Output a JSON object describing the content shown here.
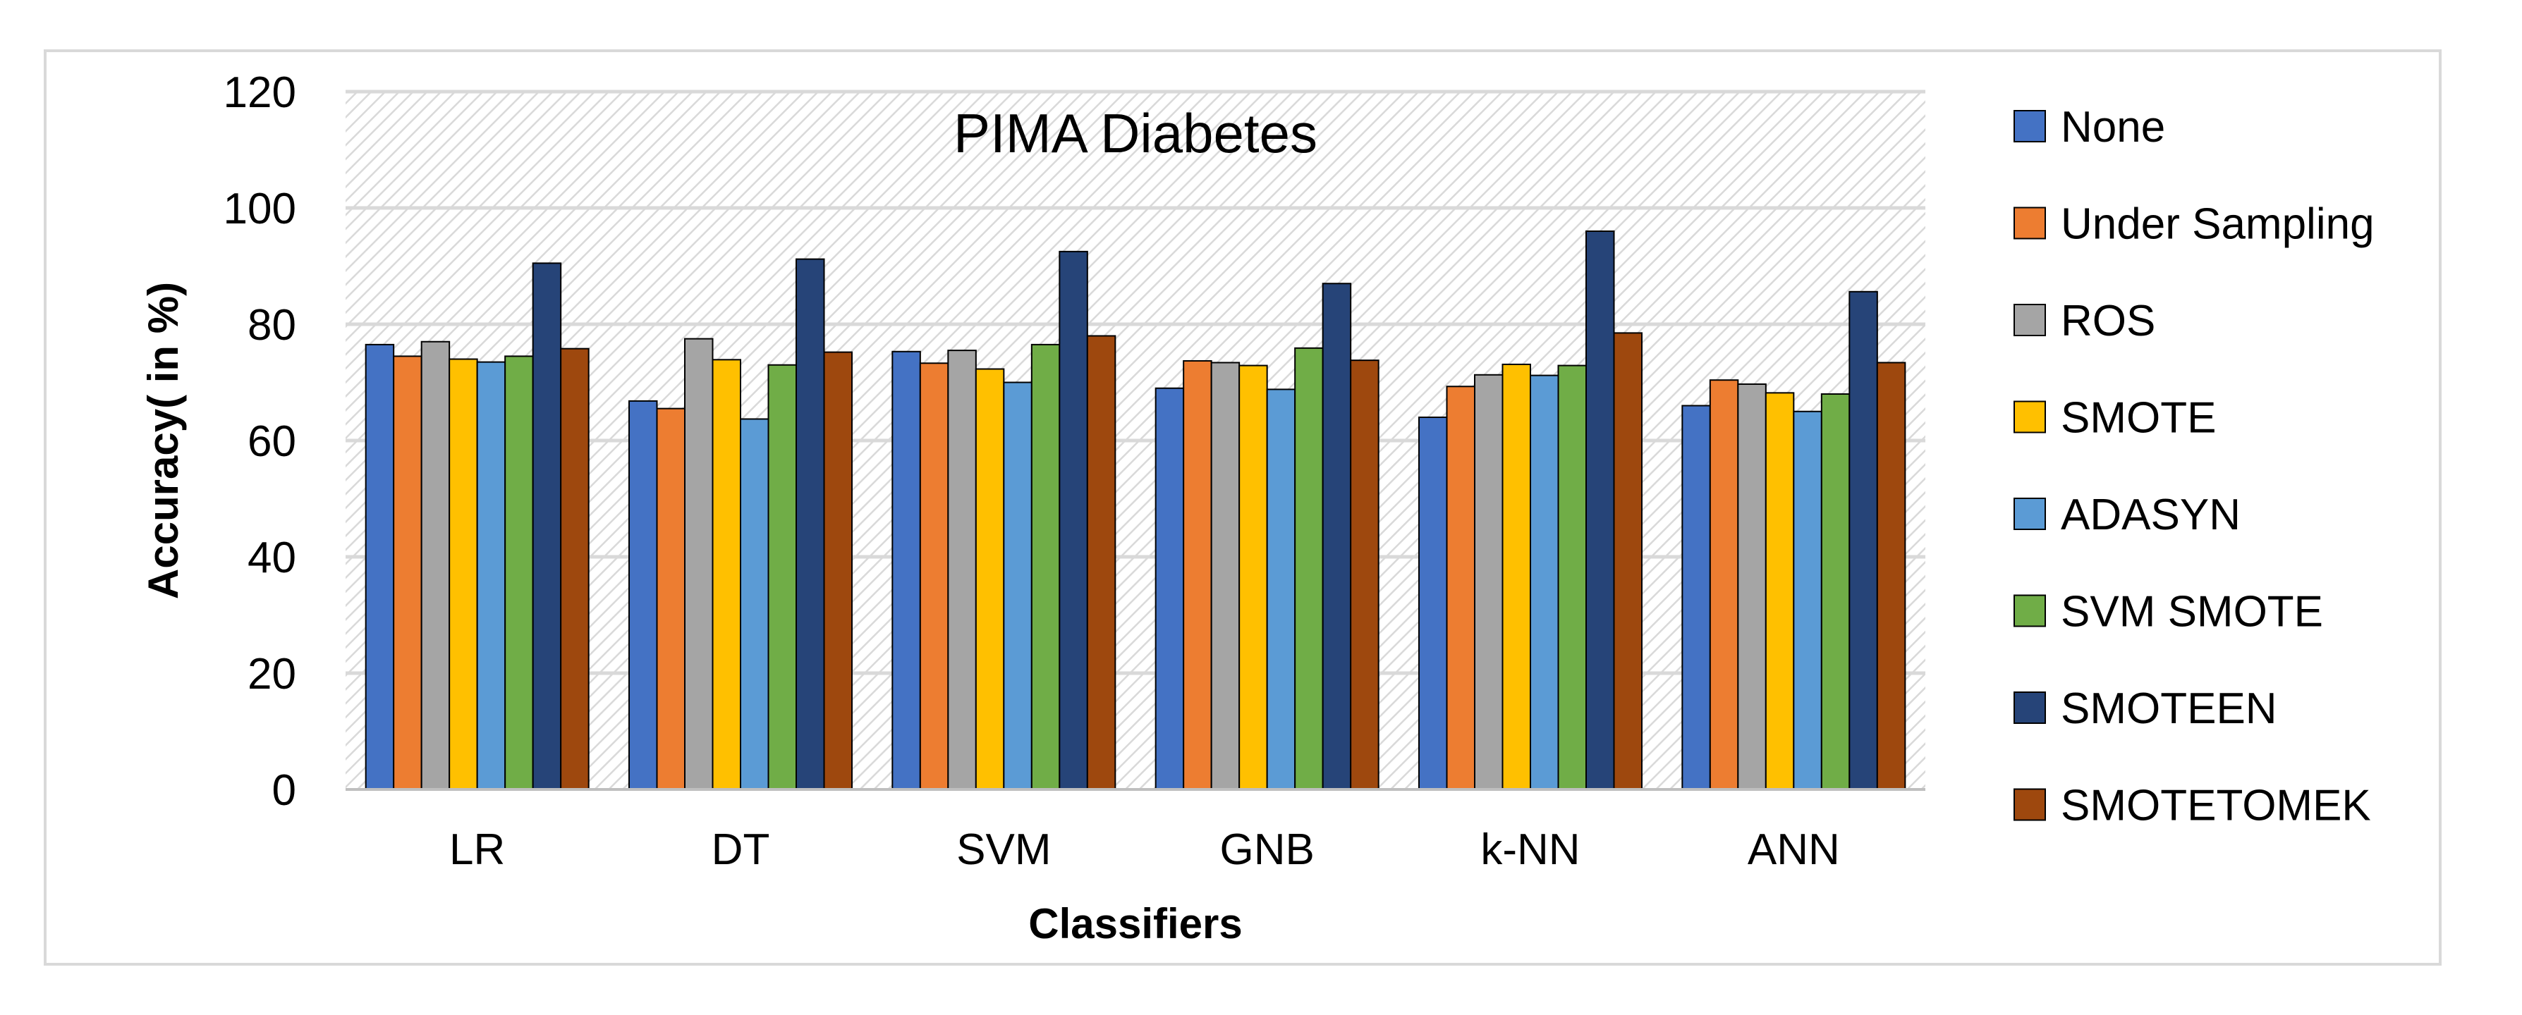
{
  "chart_data": {
    "type": "bar",
    "title": "PIMA Diabetes",
    "xlabel": "Classifiers",
    "ylabel": "Accuracy( in %)",
    "ylim": [
      0,
      120
    ],
    "yticks": [
      0,
      20,
      40,
      60,
      80,
      100,
      120
    ],
    "grid": true,
    "legend_position": "right",
    "categories": [
      "LR",
      "DT",
      "SVM",
      "GNB",
      "k-NN",
      "ANN"
    ],
    "series": [
      {
        "name": "None",
        "color": "#4472c4",
        "values": [
          76.5,
          66.8,
          75.3,
          69.0,
          64.0,
          66.0
        ]
      },
      {
        "name": "Under Sampling",
        "color": "#ed7d31",
        "values": [
          74.5,
          65.5,
          73.3,
          73.7,
          69.3,
          70.4
        ]
      },
      {
        "name": "ROS",
        "color": "#a5a5a5",
        "values": [
          77.0,
          77.5,
          75.5,
          73.4,
          71.3,
          69.7
        ]
      },
      {
        "name": "SMOTE",
        "color": "#ffc000",
        "values": [
          74.0,
          73.9,
          72.3,
          72.9,
          73.1,
          68.2
        ]
      },
      {
        "name": "ADASYN",
        "color": "#5b9bd5",
        "values": [
          73.5,
          63.7,
          70.0,
          68.8,
          71.2,
          65.0
        ]
      },
      {
        "name": "SVM SMOTE",
        "color": "#70ad47",
        "values": [
          74.5,
          73.0,
          76.5,
          75.9,
          72.9,
          68.0
        ]
      },
      {
        "name": "SMOTEEN",
        "color": "#264478",
        "values": [
          90.5,
          91.2,
          92.5,
          87.0,
          96.0,
          85.6
        ]
      },
      {
        "name": "SMOTETOMEK",
        "color": "#9e480e",
        "values": [
          75.8,
          75.2,
          78.0,
          73.8,
          78.5,
          73.4
        ]
      }
    ]
  }
}
